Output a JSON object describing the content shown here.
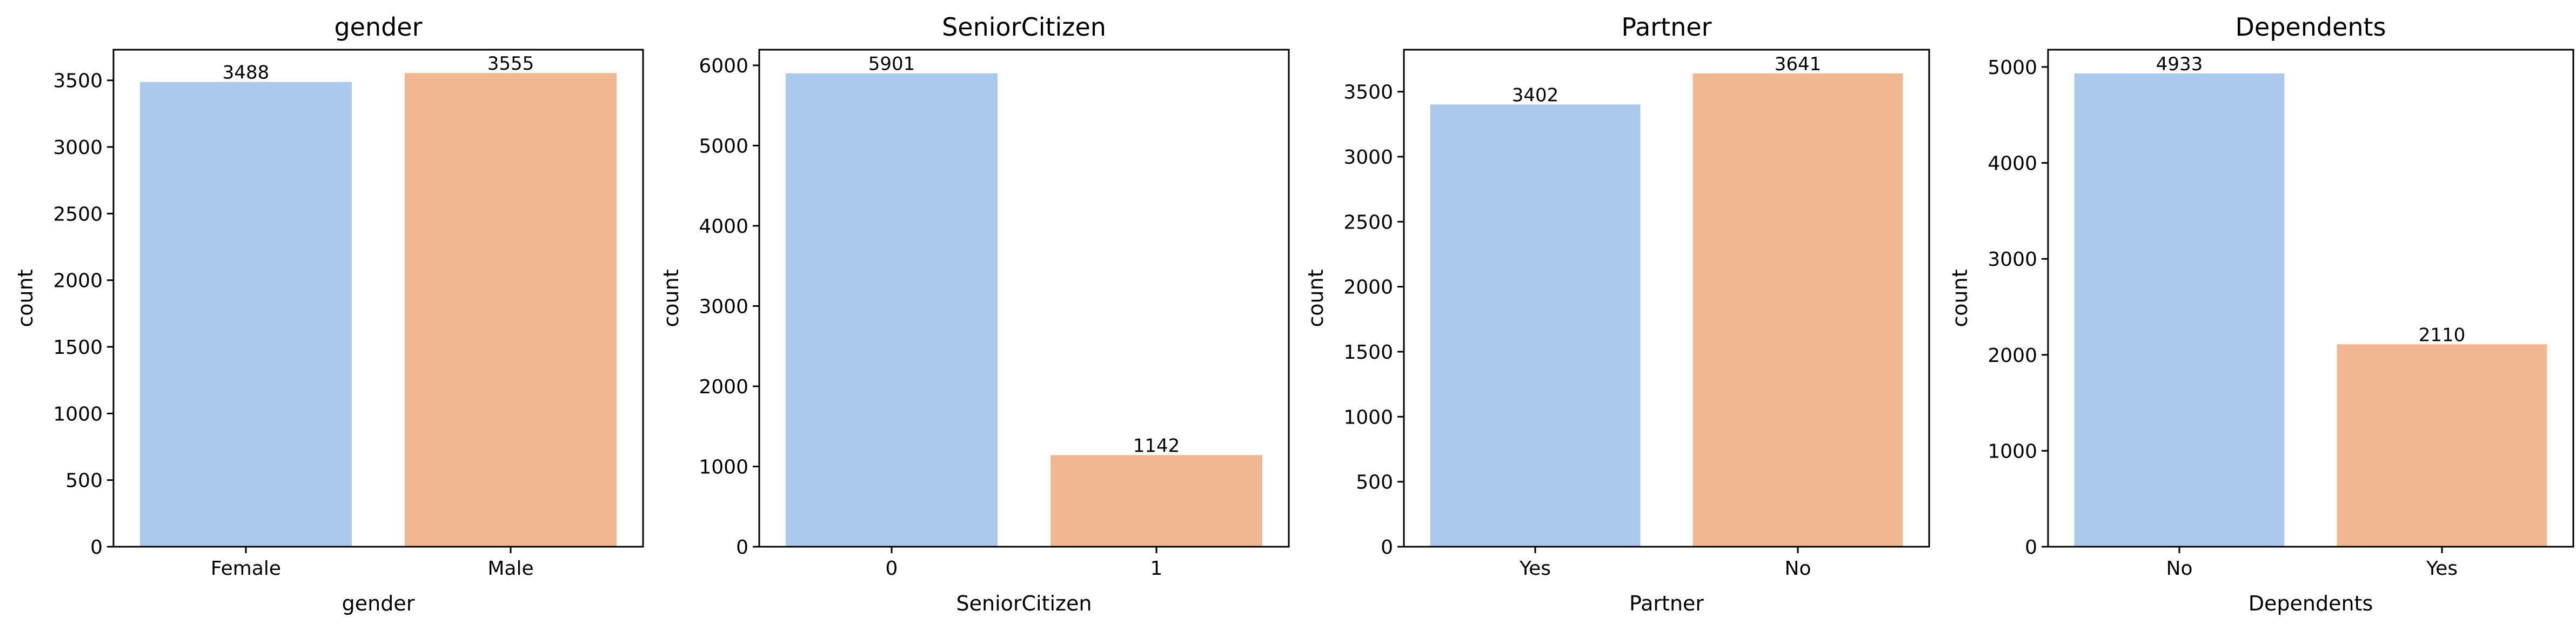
{
  "colors": {
    "bar_a": "#abc9ed",
    "bar_b": "#f0b891",
    "axis": "#000000"
  },
  "chart_data": [
    {
      "type": "bar",
      "title": "gender",
      "xlabel": "gender",
      "ylabel": "count",
      "categories": [
        "Female",
        "Male"
      ],
      "values": [
        3488,
        3555
      ],
      "data_labels": [
        "3488",
        "3555"
      ],
      "ylim": [
        0,
        3730
      ],
      "yticks": [
        0,
        500,
        1000,
        1500,
        2000,
        2500,
        3000,
        3500
      ],
      "grid": false
    },
    {
      "type": "bar",
      "title": "SeniorCitizen",
      "xlabel": "SeniorCitizen",
      "ylabel": "count",
      "categories": [
        "0",
        "1"
      ],
      "values": [
        5901,
        1142
      ],
      "data_labels": [
        "5901",
        "1142"
      ],
      "ylim": [
        0,
        6195
      ],
      "yticks": [
        0,
        1000,
        2000,
        3000,
        4000,
        5000,
        6000
      ],
      "grid": false
    },
    {
      "type": "bar",
      "title": "Partner",
      "xlabel": "Partner",
      "ylabel": "count",
      "categories": [
        "Yes",
        "No"
      ],
      "values": [
        3402,
        3641
      ],
      "data_labels": [
        "3402",
        "3641"
      ],
      "ylim": [
        0,
        3823
      ],
      "yticks": [
        0,
        500,
        1000,
        1500,
        2000,
        2500,
        3000,
        3500
      ],
      "grid": false
    },
    {
      "type": "bar",
      "title": "Dependents",
      "xlabel": "Dependents",
      "ylabel": "count",
      "categories": [
        "No",
        "Yes"
      ],
      "values": [
        4933,
        2110
      ],
      "data_labels": [
        "4933",
        "2110"
      ],
      "ylim": [
        0,
        5180
      ],
      "yticks": [
        0,
        1000,
        2000,
        3000,
        4000,
        5000
      ],
      "grid": false
    }
  ]
}
